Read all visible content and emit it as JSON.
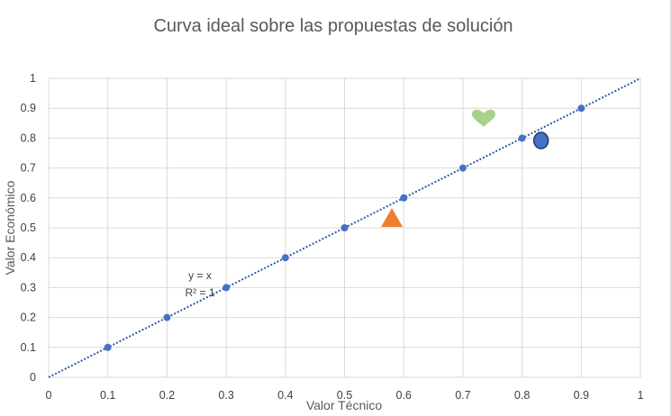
{
  "chart_data": {
    "type": "scatter",
    "title": "Curva ideal sobre las propuestas de solución",
    "xlabel": "Valor Técnico",
    "ylabel": "Valor Económico",
    "xlim": [
      0,
      1
    ],
    "ylim": [
      0,
      1
    ],
    "xticks": [
      "0",
      "0.1",
      "0.2",
      "0.3",
      "0.4",
      "0.5",
      "0.6",
      "0.7",
      "0.8",
      "0.9",
      "1"
    ],
    "yticks": [
      "0",
      "0.1",
      "0.2",
      "0.3",
      "0.4",
      "0.5",
      "0.6",
      "0.7",
      "0.8",
      "0.9",
      "1"
    ],
    "grid": true,
    "legend": "none",
    "series": [
      {
        "marker": "circle",
        "color": "#4472c4",
        "points": [
          {
            "x": 0.1,
            "y": 0.1
          },
          {
            "x": 0.2,
            "y": 0.2
          },
          {
            "x": 0.3,
            "y": 0.3
          },
          {
            "x": 0.4,
            "y": 0.4
          },
          {
            "x": 0.5,
            "y": 0.5
          },
          {
            "x": 0.6,
            "y": 0.6
          },
          {
            "x": 0.7,
            "y": 0.7
          },
          {
            "x": 0.8,
            "y": 0.8
          },
          {
            "x": 0.9,
            "y": 0.9
          }
        ]
      }
    ],
    "trendline": {
      "style": "dotted",
      "color": "#2e5aa8",
      "from": {
        "x": 0,
        "y": 0
      },
      "to": {
        "x": 1,
        "y": 1
      },
      "equation": "y = x",
      "r2": "R² = 1"
    },
    "proposals": [
      {
        "shape": "triangle",
        "color": "#ed7d31",
        "x": 0.58,
        "y": 0.53
      },
      {
        "shape": "heart",
        "color": "#a9d18e",
        "x": 0.735,
        "y": 0.865
      },
      {
        "shape": "circle",
        "color": "#4472c4",
        "x": 0.832,
        "y": 0.792
      }
    ]
  }
}
